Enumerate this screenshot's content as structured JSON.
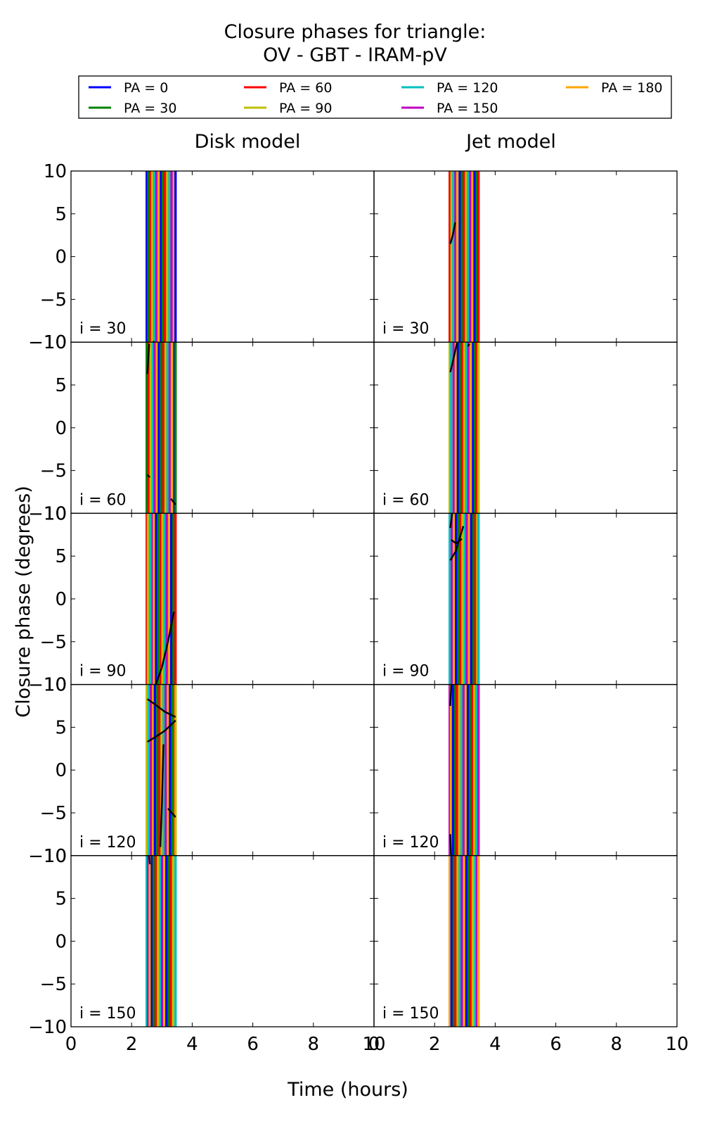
{
  "chart_data": {
    "type": "line",
    "title": "Closure phases for triangle:",
    "subtitle": "OV - GBT - IRAM-pV",
    "xlabel": "Time (hours)",
    "ylabel": "Closure phase (degrees)",
    "xlim": [
      0,
      10
    ],
    "ylim": [
      -10,
      10
    ],
    "xticks": [
      "0",
      "2",
      "4",
      "6",
      "8",
      "10"
    ],
    "yticks": [
      "−10",
      "−5",
      "0",
      "5",
      "10"
    ],
    "grid": false,
    "legend_placement": "top",
    "columns": [
      "Disk model",
      "Jet model"
    ],
    "rows": [
      "i = 30",
      "i = 60",
      "i = 90",
      "i = 120",
      "i = 150"
    ],
    "series": [
      {
        "name": "PA = 0",
        "color": "#0000ff"
      },
      {
        "name": "PA = 30",
        "color": "#008000"
      },
      {
        "name": "PA = 60",
        "color": "#ff0000"
      },
      {
        "name": "PA = 90",
        "color": "#bfbf00"
      },
      {
        "name": "PA = 120",
        "color": "#00bfbf"
      },
      {
        "name": "PA = 150",
        "color": "#bf00bf"
      },
      {
        "name": "PA = 180",
        "color": "#ffa500"
      }
    ],
    "time_window": {
      "disk_model": [
        2.5,
        3.45
      ],
      "jet_model": [
        2.5,
        3.45
      ]
    },
    "vertical_line_times": {
      "disk_model": [
        [
          2.5,
          2.55,
          2.62,
          2.68,
          2.75,
          2.82,
          2.9,
          2.97,
          3.03,
          3.1,
          3.18,
          3.25,
          3.32,
          3.4,
          3.45
        ],
        [
          2.5,
          2.56,
          2.63,
          2.7,
          2.76,
          2.84,
          2.9,
          2.98,
          3.05,
          3.12,
          3.19,
          3.26,
          3.33,
          3.41,
          3.45
        ],
        [
          2.5,
          2.54,
          2.61,
          2.69,
          2.74,
          2.81,
          2.88,
          2.96,
          3.02,
          3.09,
          3.16,
          3.24,
          3.31,
          3.38,
          3.45
        ],
        [
          2.5,
          2.57,
          2.64,
          2.71,
          2.77,
          2.85,
          2.92,
          2.99,
          3.06,
          3.13,
          3.2,
          3.27,
          3.34,
          3.42,
          3.45
        ],
        [
          2.5,
          2.55,
          2.6,
          2.67,
          2.73,
          2.8,
          2.87,
          2.95,
          3.01,
          3.08,
          3.15,
          3.23,
          3.3,
          3.37,
          3.45
        ]
      ],
      "jet_model": [
        [
          2.5,
          2.56,
          2.62,
          2.69,
          2.75,
          2.83,
          2.9,
          2.97,
          3.04,
          3.11,
          3.18,
          3.25,
          3.32,
          3.39,
          3.45
        ],
        [
          2.5,
          2.55,
          2.63,
          2.7,
          2.77,
          2.84,
          2.91,
          2.98,
          3.05,
          3.12,
          3.19,
          3.27,
          3.33,
          3.4,
          3.45
        ],
        [
          2.5,
          2.57,
          2.64,
          2.71,
          2.78,
          2.85,
          2.92,
          3.0,
          3.06,
          3.14,
          3.21,
          3.28,
          3.35,
          3.41,
          3.45
        ],
        [
          2.5,
          2.54,
          2.61,
          2.68,
          2.74,
          2.82,
          2.89,
          2.96,
          3.03,
          3.1,
          3.17,
          3.24,
          3.31,
          3.38,
          3.45
        ],
        [
          2.5,
          2.56,
          2.63,
          2.69,
          2.76,
          2.83,
          2.9,
          2.98,
          3.05,
          3.12,
          3.19,
          3.26,
          3.34,
          3.4,
          3.45
        ]
      ]
    },
    "black_curves": {
      "disk_model": [
        [
          [
            [
              2.7,
              -9.9
            ],
            [
              3.0,
              -10.5
            ],
            [
              3.45,
              -11.2
            ]
          ]
        ],
        [
          [
            [
              2.52,
              6.3
            ],
            [
              2.58,
              9.8
            ]
          ],
          [
            [
              2.52,
              -5.5
            ],
            [
              2.6,
              -5.8
            ]
          ],
          [
            [
              3.3,
              -8.3
            ],
            [
              3.45,
              -9.0
            ]
          ]
        ],
        [
          [
            [
              2.8,
              -10.0
            ],
            [
              3.0,
              -8.0
            ],
            [
              3.2,
              -5.0
            ],
            [
              3.4,
              -1.5
            ]
          ]
        ],
        [
          [
            [
              2.52,
              8.3
            ],
            [
              2.8,
              7.6
            ],
            [
              3.1,
              6.8
            ],
            [
              3.45,
              6.2
            ]
          ],
          [
            [
              2.52,
              3.3
            ],
            [
              2.8,
              3.9
            ],
            [
              3.1,
              4.6
            ],
            [
              3.45,
              5.8
            ]
          ],
          [
            [
              2.95,
              -9.0
            ],
            [
              3.0,
              -4.0
            ],
            [
              3.05,
              3.0
            ]
          ],
          [
            [
              3.2,
              -4.5
            ],
            [
              3.45,
              -5.5
            ]
          ]
        ],
        [
          [
            [
              2.58,
              10.0
            ],
            [
              2.6,
              9.0
            ]
          ]
        ]
      ],
      "jet_model": [
        [
          [
            [
              2.52,
              1.5
            ],
            [
              2.6,
              2.5
            ],
            [
              2.68,
              4.0
            ]
          ]
        ],
        [
          [
            [
              2.52,
              6.5
            ],
            [
              2.62,
              8.0
            ],
            [
              2.74,
              9.9
            ]
          ],
          [
            [
              3.1,
              9.5
            ],
            [
              3.15,
              9.8
            ]
          ]
        ],
        [
          [
            [
              2.52,
              8.3
            ],
            [
              2.58,
              10.0
            ]
          ],
          [
            [
              2.52,
              4.5
            ],
            [
              2.7,
              5.6
            ],
            [
              2.95,
              8.5
            ]
          ],
          [
            [
              2.55,
              6.9
            ],
            [
              2.7,
              6.5
            ],
            [
              2.9,
              7.0
            ]
          ]
        ],
        [
          [
            [
              2.52,
              7.5
            ],
            [
              2.55,
              10.0
            ]
          ],
          [
            [
              2.52,
              -7.5
            ],
            [
              2.54,
              -10.0
            ]
          ]
        ],
        []
      ]
    }
  }
}
